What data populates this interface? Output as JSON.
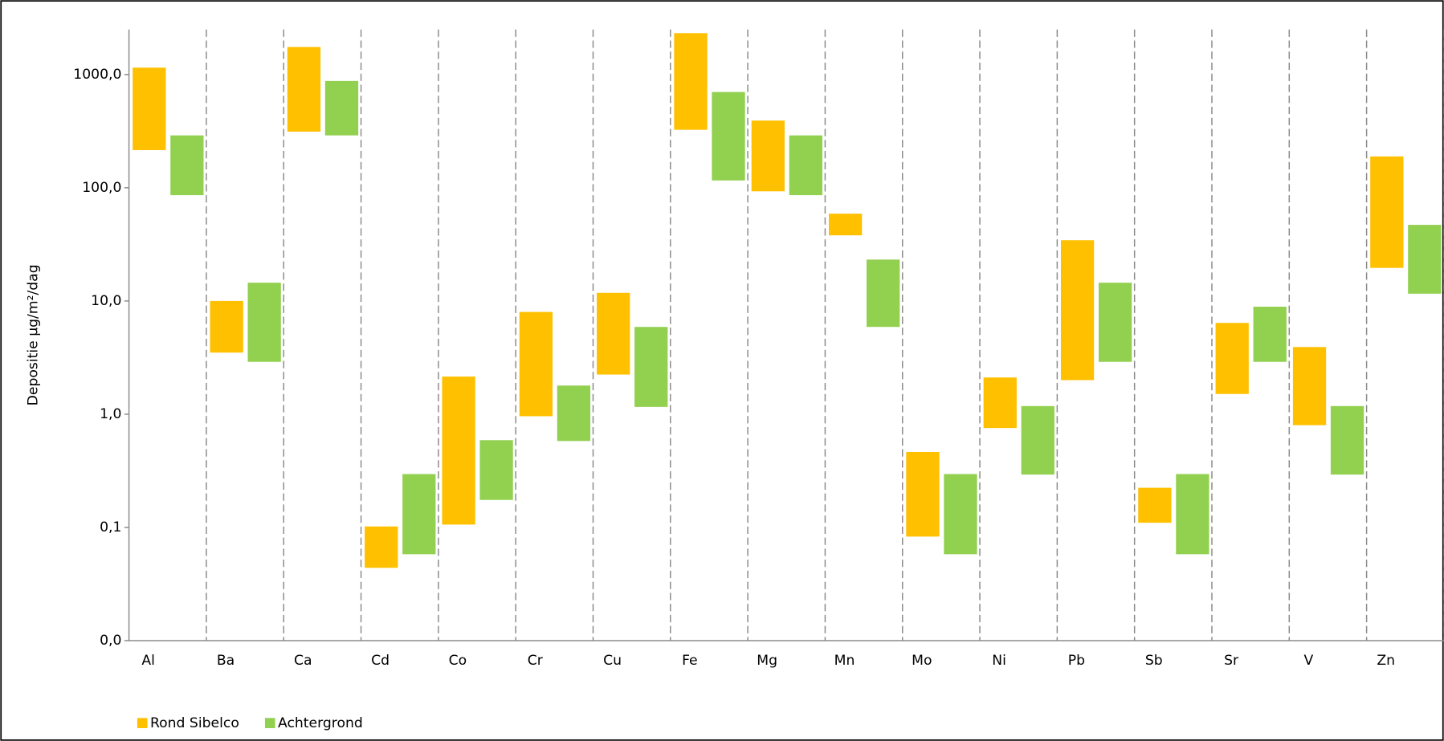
{
  "chart_data": {
    "type": "floating-bar",
    "yscale": "log",
    "ylabel": "Depositie µg/m²/dag",
    "categories": [
      "Al",
      "Ba",
      "Ca",
      "Cd",
      "Co",
      "Cr",
      "Cu",
      "Fe",
      "Mg",
      "Mn",
      "Mo",
      "Ni",
      "Pb",
      "Sb",
      "Sr",
      "V",
      "Zn"
    ],
    "ylim": [
      0.01,
      2500
    ],
    "yticks": [
      {
        "value": 0.01,
        "label": "0,0"
      },
      {
        "value": 0.1,
        "label": "0,1"
      },
      {
        "value": 1,
        "label": "1,0"
      },
      {
        "value": 10,
        "label": "10,0"
      },
      {
        "value": 100,
        "label": "100,0"
      },
      {
        "value": 1000,
        "label": "1000,0"
      }
    ],
    "legend": "bottom-left",
    "series": [
      {
        "name": "Rond Sibelco",
        "color": "#ffc000",
        "low": [
          215,
          3.5,
          313,
          0.044,
          0.106,
          0.96,
          2.24,
          325,
          93,
          38,
          0.083,
          0.755,
          2.0,
          0.11,
          1.51,
          0.8,
          19.6
        ],
        "high": [
          1150,
          10,
          1750,
          0.102,
          2.15,
          8.0,
          11.8,
          2320,
          392,
          59,
          0.464,
          2.11,
          34.4,
          0.224,
          6.4,
          3.92,
          189
        ]
      },
      {
        "name": "Achtergrond",
        "color": "#92d050",
        "low": [
          86,
          2.9,
          290,
          0.058,
          0.175,
          0.58,
          1.16,
          116,
          86,
          5.9,
          0.058,
          0.293,
          2.9,
          0.058,
          2.9,
          0.293,
          11.6
        ],
        "high": [
          290,
          14.5,
          877,
          0.296,
          0.59,
          1.79,
          5.9,
          701,
          290,
          23.2,
          0.296,
          1.18,
          14.5,
          0.296,
          8.9,
          1.18,
          47
        ]
      }
    ]
  }
}
